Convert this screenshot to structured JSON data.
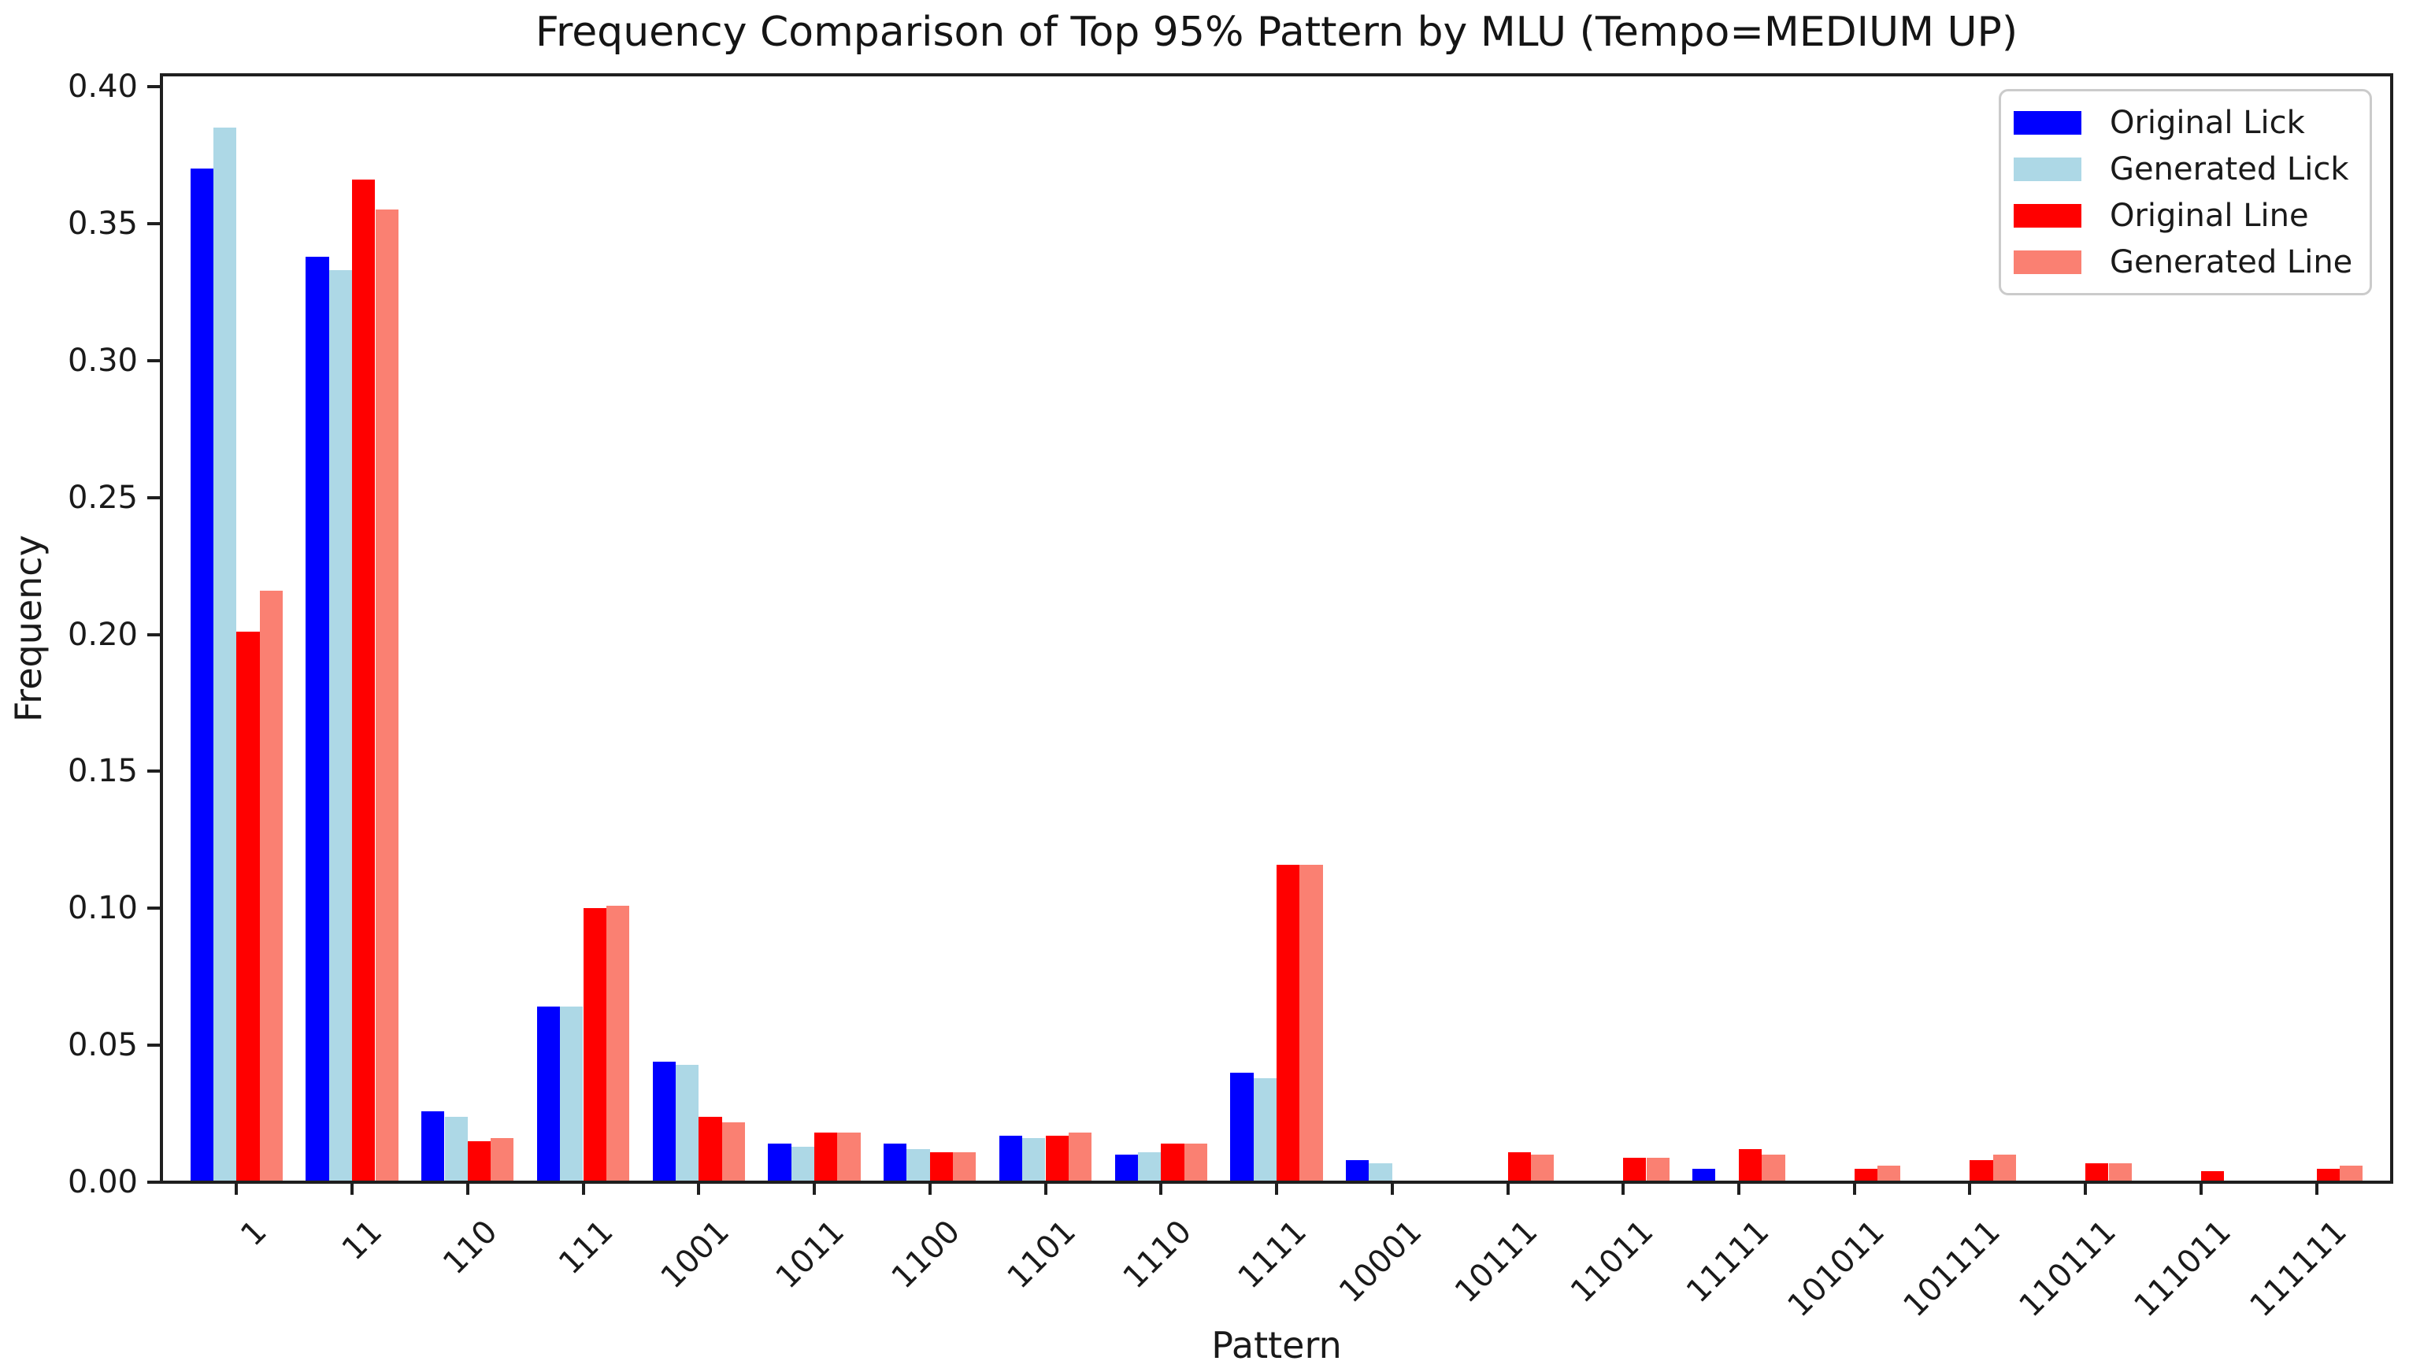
{
  "chart_data": {
    "type": "bar",
    "title": "Frequency Comparison of Top 95% Pattern by MLU (Tempo=MEDIUM UP)",
    "xlabel": "Pattern",
    "ylabel": "Frequency",
    "categories": [
      "1",
      "11",
      "110",
      "111",
      "1001",
      "1011",
      "1100",
      "1101",
      "1110",
      "1111",
      "10001",
      "10111",
      "11011",
      "11111",
      "101011",
      "101111",
      "110111",
      "111011",
      "111111"
    ],
    "series": [
      {
        "name": "Original Lick",
        "color": "#0000ff",
        "values": [
          0.37,
          0.338,
          0.026,
          0.064,
          0.044,
          0.014,
          0.014,
          0.017,
          0.01,
          0.04,
          0.008,
          0,
          0,
          0.005,
          0,
          0,
          0,
          0,
          0
        ]
      },
      {
        "name": "Generated Lick",
        "color": "#add8e6",
        "values": [
          0.385,
          0.333,
          0.024,
          0.064,
          0.043,
          0.013,
          0.012,
          0.016,
          0.011,
          0.038,
          0.007,
          0,
          0,
          0,
          0,
          0,
          0,
          0,
          0
        ]
      },
      {
        "name": "Original Line",
        "color": "#ff0000",
        "values": [
          0.201,
          0.366,
          0.015,
          0.1,
          0.024,
          0.018,
          0.011,
          0.017,
          0.014,
          0.116,
          0,
          0.011,
          0.009,
          0.012,
          0.005,
          0.008,
          0.007,
          0.004,
          0.005
        ]
      },
      {
        "name": "Generated Line",
        "color": "#fa8072",
        "values": [
          0.216,
          0.355,
          0.016,
          0.101,
          0.022,
          0.018,
          0.011,
          0.018,
          0.014,
          0.116,
          0,
          0.01,
          0.009,
          0.01,
          0.006,
          0.01,
          0.007,
          0,
          0.006
        ]
      }
    ],
    "ylim": [
      0,
      0.4043
    ],
    "yticks": [
      0.0,
      0.05,
      0.1,
      0.15,
      0.2,
      0.25,
      0.3,
      0.35,
      0.4
    ],
    "ytick_format_decimals": 2,
    "x_tick_rotation": 45,
    "bar_group_width_fraction": 0.8,
    "legend_position": "upper right",
    "grid": false
  }
}
